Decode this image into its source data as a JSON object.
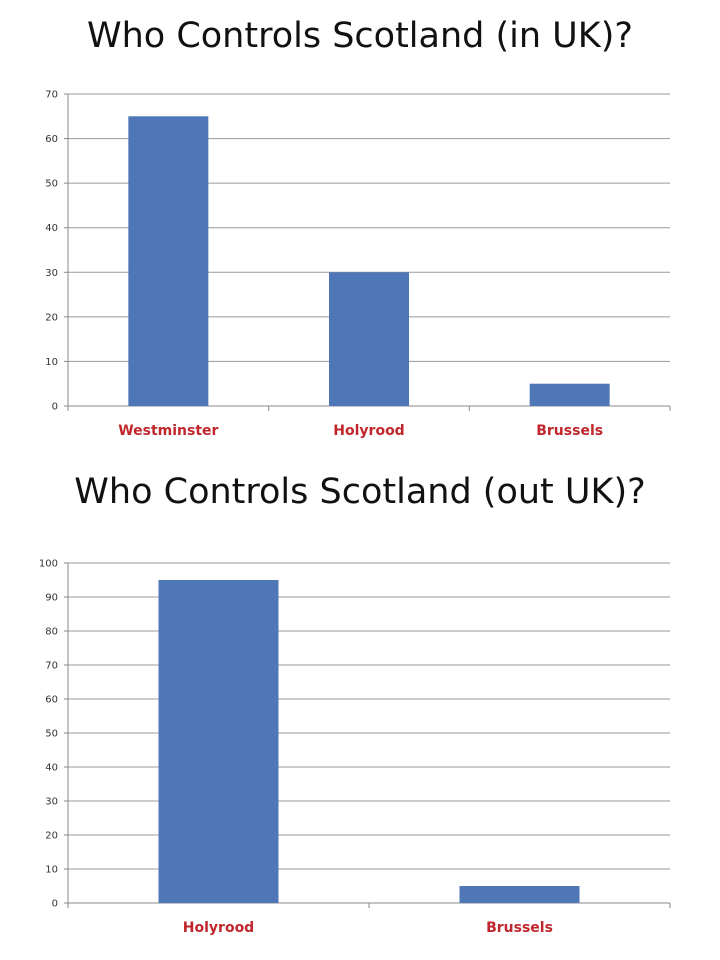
{
  "colors": {
    "bar": "#4f76b7",
    "category_label": "#c0262b",
    "gridline": "#9a9a9a",
    "axis": "#8a8a8a"
  },
  "chart_data": [
    {
      "type": "bar",
      "title": "Who Controls Scotland (in UK)?",
      "categories": [
        "Westminster",
        "Holyrood",
        "Brussels"
      ],
      "values": [
        65,
        30,
        5
      ],
      "ylim": [
        0,
        70
      ],
      "yticks": [
        0,
        10,
        20,
        30,
        40,
        50,
        60,
        70
      ],
      "grid": true,
      "legend": "none"
    },
    {
      "type": "bar",
      "title": "Who Controls Scotland (out UK)?",
      "categories": [
        "Holyrood",
        "Brussels"
      ],
      "values": [
        95,
        5
      ],
      "ylim": [
        0,
        100
      ],
      "yticks": [
        0,
        10,
        20,
        30,
        40,
        50,
        60,
        70,
        80,
        90,
        100
      ],
      "grid": true,
      "legend": "none"
    }
  ]
}
